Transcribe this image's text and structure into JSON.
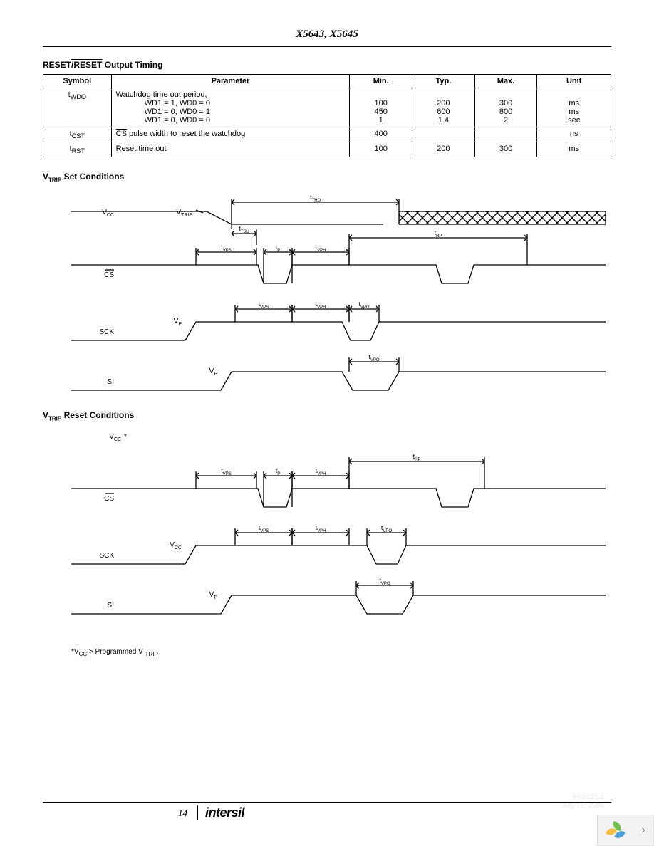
{
  "doc_title": "X5643, X5645",
  "page_number": "14",
  "logo_text": "intersil",
  "table": {
    "title_prefix": "RESET",
    "title_overline": "/RESET",
    "title_suffix": " Output Timing",
    "headers": [
      "Symbol",
      "Parameter",
      "Min.",
      "Typ.",
      "Max.",
      "Unit"
    ],
    "rows": [
      {
        "symbol_html": "t<sub>WDO</sub>",
        "param_lines": [
          "Watchdog time out period,",
          "WD1 = 1, WD0 = 0",
          "WD1 = 0, WD0 = 1",
          "WD1 = 0, WD0 = 0"
        ],
        "min": [
          "",
          "100",
          "450",
          "1"
        ],
        "typ": [
          "",
          "200",
          "600",
          "1.4"
        ],
        "max": [
          "",
          "300",
          "800",
          "2"
        ],
        "unit": [
          "",
          "ms",
          "ms",
          "sec"
        ]
      },
      {
        "symbol_html": "t<sub>CST</sub>",
        "param_html": "<span class='overline'>CS</span> pulse width to reset the watchdog",
        "min": "400",
        "typ": "",
        "max": "",
        "unit": "ns"
      },
      {
        "symbol_html": "t<sub>RST</sub>",
        "param_html": "Reset time out",
        "min": "100",
        "typ": "200",
        "max": "300",
        "unit": "ms"
      }
    ]
  },
  "diagram1": {
    "title_prefix": "V",
    "title_sub": "TRIP",
    "title_suffix": "  Set Conditions",
    "signals": {
      "vcc": "V",
      "vcc_sub": "CC",
      "vtrip": "V",
      "vtrip_sub": "TRIP",
      "cs": "CS",
      "sck": "SCK",
      "si": "SI",
      "vp": "V",
      "vp_sub": "P"
    },
    "labels": {
      "tthd": "t",
      "tthd_sub": "THD",
      "ttsu": "t",
      "ttsu_sub": "TSU",
      "tvps": "t",
      "tvps_sub": "VPS",
      "tp": "t",
      "tp_sub": "P",
      "tvph": "t",
      "tvph_sub": "VPH",
      "trp": "t",
      "trp_sub": "RP",
      "tvpo": "t",
      "tvpo_sub": "VPO"
    }
  },
  "diagram2": {
    "title_prefix": "V",
    "title_sub": "TRIP",
    "title_suffix": "  Reset Conditions",
    "signals": {
      "vcc": "V",
      "vcc_sub": "CC",
      "cs": "CS",
      "sck": "SCK",
      "si": "SI",
      "vp": "V",
      "vp_sub": "P"
    },
    "labels": {
      "tvps": "t",
      "tvps_sub": "VPS",
      "tp": "t",
      "tp_sub": "P",
      "tvph": "t",
      "tvph_sub": "VPH",
      "trp": "t",
      "trp_sub": "RP",
      "tvpo": "t",
      "tvpo_sub": "VPO"
    },
    "vcc_label": "V",
    "vcc_label_sub": "CC",
    "footnote_prefix": "*V",
    "footnote_sub1": "CC",
    "footnote_mid": " > Programmed V",
    "footnote_sub2": "TRIP"
  },
  "style": {
    "stroke": "#000000",
    "stroke_width": 1.3,
    "font_size_label": 9,
    "font_size_signal": 10,
    "arrow_size": 4
  },
  "faded": {
    "line1": "FN8131.1",
    "line2": "July 18, 2005"
  }
}
